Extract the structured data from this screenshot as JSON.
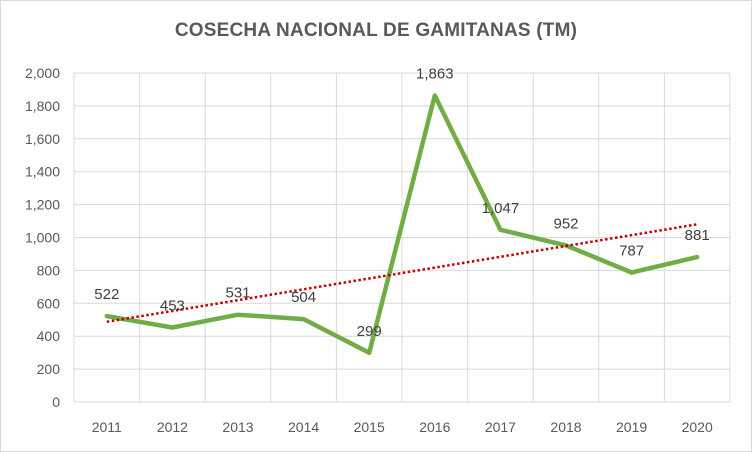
{
  "chart_data": {
    "type": "line",
    "title": "COSECHA NACIONAL DE GAMITANAS (TM)",
    "xlabel": "",
    "ylabel": "",
    "categories": [
      "2011",
      "2012",
      "2013",
      "2014",
      "2015",
      "2016",
      "2017",
      "2018",
      "2019",
      "2020"
    ],
    "series": [
      {
        "values": [
          522,
          453,
          531,
          504,
          299,
          1863,
          1047,
          952,
          787,
          881
        ],
        "data_labels": [
          "522",
          "453",
          "531",
          "504",
          "299",
          "1,863",
          "1,047",
          "952",
          "787",
          "881"
        ],
        "color": "#70ad47"
      }
    ],
    "trendline": {
      "type": "linear",
      "color": "#c00000",
      "style": "dotted"
    },
    "ylim": [
      0,
      2000
    ],
    "yticks": [
      0,
      200,
      400,
      600,
      800,
      1000,
      1200,
      1400,
      1600,
      1800,
      2000
    ],
    "ytick_labels": [
      "0",
      "200",
      "400",
      "600",
      "800",
      "1,000",
      "1,200",
      "1,400",
      "1,600",
      "1,800",
      "2,000"
    ],
    "grid": true,
    "legend": "none"
  }
}
